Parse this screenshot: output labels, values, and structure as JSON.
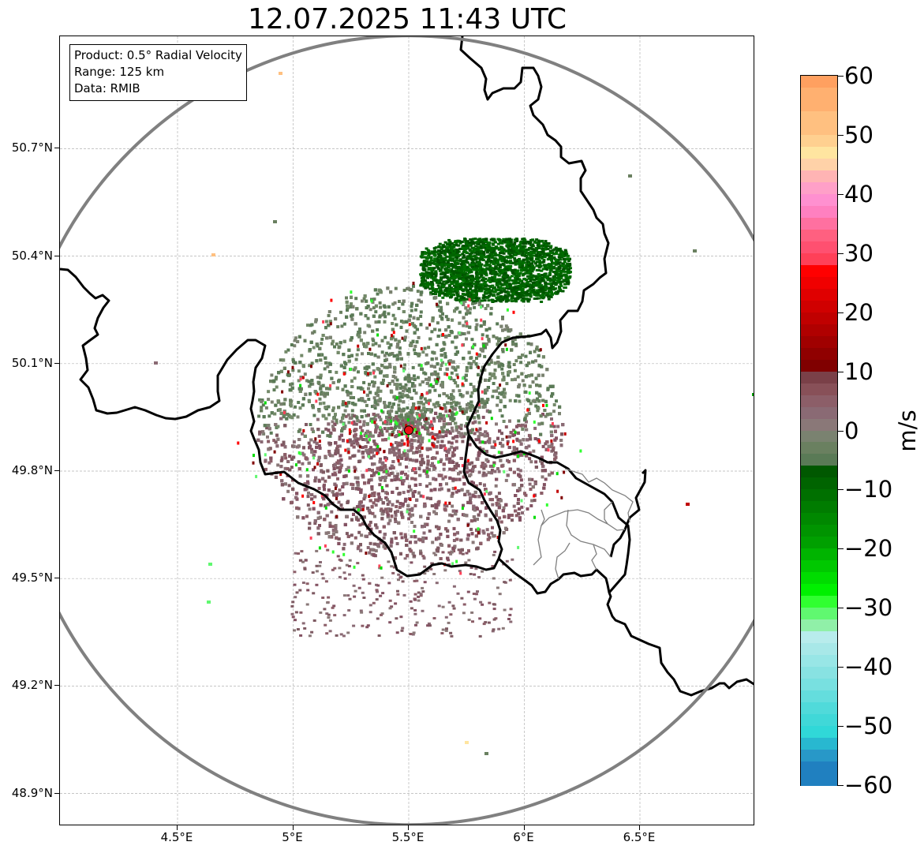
{
  "title": "12.07.2025 11:43 UTC",
  "info": {
    "product": "Product: 0.5° Radial Velocity",
    "range": "Range: 125 km",
    "source": "Data: RMIB"
  },
  "axes": {
    "lon_ticks": [
      "4.5°E",
      "5°E",
      "5.5°E",
      "6°E",
      "6.5°E"
    ],
    "lat_ticks": [
      "50.7°N",
      "50.4°N",
      "50.1°N",
      "49.8°N",
      "49.5°N",
      "49.2°N",
      "48.9°N"
    ],
    "lon_values": [
      4.5,
      5.0,
      5.5,
      6.0,
      6.5
    ],
    "lat_values": [
      50.7,
      50.4,
      50.1,
      49.8,
      49.5,
      49.2,
      48.9
    ],
    "lon_range": [
      4.0,
      7.0
    ],
    "lat_range": [
      48.8,
      51.0
    ],
    "grid": true
  },
  "radar": {
    "lon": 5.5,
    "lat": 49.914,
    "range_km": 125,
    "site_color": "#e8141a"
  },
  "colorbar": {
    "unit": "m/s",
    "min": -60,
    "max": 60,
    "tick_labels": [
      "60",
      "50",
      "40",
      "30",
      "20",
      "10",
      "0",
      "−10",
      "−20",
      "−30",
      "−40",
      "−50",
      "−60"
    ],
    "tick_values": [
      60,
      50,
      40,
      30,
      20,
      10,
      0,
      -10,
      -20,
      -30,
      -40,
      -50,
      -60
    ],
    "bands": [
      {
        "from": 58,
        "to": 60,
        "color": "#ffa060"
      },
      {
        "from": 54,
        "to": 58,
        "color": "#ffb070"
      },
      {
        "from": 50,
        "to": 54,
        "color": "#ffc080"
      },
      {
        "from": 48,
        "to": 50,
        "color": "#ffd090"
      },
      {
        "from": 46,
        "to": 48,
        "color": "#ffe5a0"
      },
      {
        "from": 44,
        "to": 46,
        "color": "#ffd2a8"
      },
      {
        "from": 42,
        "to": 44,
        "color": "#ffb4b4"
      },
      {
        "from": 40,
        "to": 42,
        "color": "#ffa0c8"
      },
      {
        "from": 38,
        "to": 40,
        "color": "#ff90d0"
      },
      {
        "from": 36,
        "to": 38,
        "color": "#ff80c0"
      },
      {
        "from": 34,
        "to": 36,
        "color": "#ff70a0"
      },
      {
        "from": 32,
        "to": 34,
        "color": "#ff6080"
      },
      {
        "from": 30,
        "to": 32,
        "color": "#ff5070"
      },
      {
        "from": 28,
        "to": 30,
        "color": "#ff4058"
      },
      {
        "from": 26,
        "to": 28,
        "color": "#ff0000"
      },
      {
        "from": 24,
        "to": 26,
        "color": "#f00000"
      },
      {
        "from": 22,
        "to": 24,
        "color": "#e00000"
      },
      {
        "from": 20,
        "to": 22,
        "color": "#d00000"
      },
      {
        "from": 18,
        "to": 20,
        "color": "#c00000"
      },
      {
        "from": 16,
        "to": 18,
        "color": "#b00000"
      },
      {
        "from": 14,
        "to": 16,
        "color": "#a00000"
      },
      {
        "from": 12,
        "to": 14,
        "color": "#900000"
      },
      {
        "from": 10,
        "to": 12,
        "color": "#800000"
      },
      {
        "from": 8,
        "to": 10,
        "color": "#7a4048"
      },
      {
        "from": 6,
        "to": 8,
        "color": "#885058"
      },
      {
        "from": 4,
        "to": 6,
        "color": "#8c5e68"
      },
      {
        "from": 2,
        "to": 4,
        "color": "#8a6a74"
      },
      {
        "from": 0,
        "to": 2,
        "color": "#8a7878"
      },
      {
        "from": -2,
        "to": 0,
        "color": "#7a8270"
      },
      {
        "from": -4,
        "to": -2,
        "color": "#6a8060"
      },
      {
        "from": -6,
        "to": -4,
        "color": "#5a7a56"
      },
      {
        "from": -8,
        "to": -6,
        "color": "#005800"
      },
      {
        "from": -10,
        "to": -8,
        "color": "#006400"
      },
      {
        "from": -12,
        "to": -10,
        "color": "#007000"
      },
      {
        "from": -14,
        "to": -12,
        "color": "#007c00"
      },
      {
        "from": -16,
        "to": -14,
        "color": "#008800"
      },
      {
        "from": -18,
        "to": -16,
        "color": "#009400"
      },
      {
        "from": -20,
        "to": -18,
        "color": "#00a000"
      },
      {
        "from": -22,
        "to": -20,
        "color": "#00b400"
      },
      {
        "from": -24,
        "to": -22,
        "color": "#00c800"
      },
      {
        "from": -26,
        "to": -24,
        "color": "#00dc00"
      },
      {
        "from": -28,
        "to": -26,
        "color": "#00f000"
      },
      {
        "from": -30,
        "to": -28,
        "color": "#30ff30"
      },
      {
        "from": -32,
        "to": -30,
        "color": "#60f870"
      },
      {
        "from": -34,
        "to": -32,
        "color": "#90f0a8"
      },
      {
        "from": -36,
        "to": -34,
        "color": "#b8ecec"
      },
      {
        "from": -38,
        "to": -36,
        "color": "#a8e8e8"
      },
      {
        "from": -40,
        "to": -38,
        "color": "#98e6e6"
      },
      {
        "from": -42,
        "to": -40,
        "color": "#88e2e2"
      },
      {
        "from": -44,
        "to": -42,
        "color": "#78e0e0"
      },
      {
        "from": -46,
        "to": -44,
        "color": "#64dddd"
      },
      {
        "from": -48,
        "to": -46,
        "color": "#50dada"
      },
      {
        "from": -50,
        "to": -48,
        "color": "#40d8d8"
      },
      {
        "from": -52,
        "to": -50,
        "color": "#30d8d8"
      },
      {
        "from": -54,
        "to": -52,
        "color": "#28b8d0"
      },
      {
        "from": -56,
        "to": -54,
        "color": "#2898c8"
      },
      {
        "from": -60,
        "to": -56,
        "color": "#2080c0"
      }
    ]
  },
  "colors": {
    "range_ring": "#808080",
    "border": "#000000",
    "admin_border": "#808080",
    "grid": "#b4b4b4"
  }
}
